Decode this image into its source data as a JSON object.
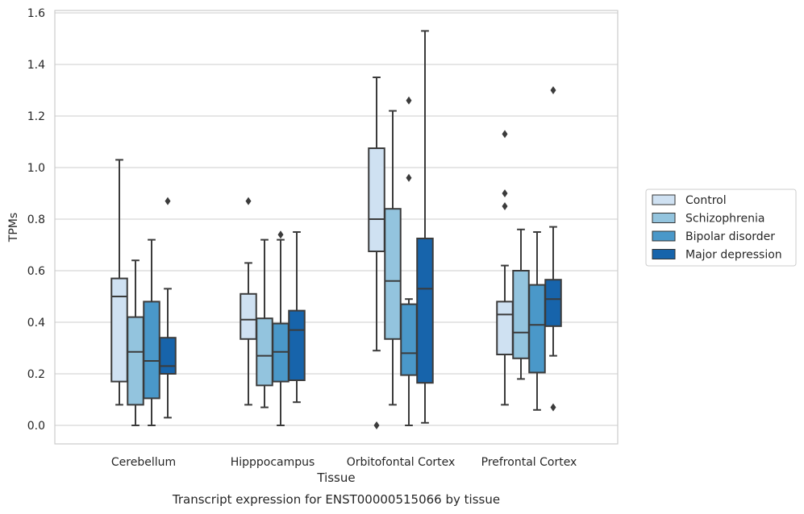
{
  "chart_data": {
    "type": "box",
    "title": "",
    "caption": "Transcript expression for ENST00000515066 by tissue",
    "xlabel": "Tissue",
    "ylabel": "TPMs",
    "ylim": [
      -0.07,
      1.61
    ],
    "yticks": [
      0.0,
      0.2,
      0.4,
      0.6,
      0.8,
      1.0,
      1.2,
      1.4,
      1.6
    ],
    "ytick_labels": [
      "0.0",
      "0.2",
      "0.4",
      "0.6",
      "0.8",
      "1.0",
      "1.2",
      "1.4",
      "1.6"
    ],
    "grid": "horizontal",
    "legend_position": "right",
    "categories": [
      "Cerebellum",
      "Hipppocampus",
      "Orbitofontal Cortex",
      "Prefrontal Cortex"
    ],
    "series": [
      {
        "name": "Control",
        "color": "#cfe1f2",
        "boxes": [
          {
            "min": 0.08,
            "q1": 0.17,
            "median": 0.5,
            "q3": 0.57,
            "max": 1.03,
            "outliers": []
          },
          {
            "min": 0.08,
            "q1": 0.335,
            "median": 0.41,
            "q3": 0.51,
            "max": 0.63,
            "outliers": [
              0.87
            ]
          },
          {
            "min": 0.29,
            "q1": 0.675,
            "median": 0.8,
            "q3": 1.075,
            "max": 1.35,
            "outliers": [
              0.0
            ]
          },
          {
            "min": 0.08,
            "q1": 0.275,
            "median": 0.43,
            "q3": 0.48,
            "max": 0.62,
            "outliers": [
              0.85,
              0.9,
              1.13
            ]
          }
        ]
      },
      {
        "name": "Schizophrenia",
        "color": "#93c4de",
        "boxes": [
          {
            "min": 0.0,
            "q1": 0.08,
            "median": 0.285,
            "q3": 0.42,
            "max": 0.64,
            "outliers": []
          },
          {
            "min": 0.07,
            "q1": 0.155,
            "median": 0.27,
            "q3": 0.415,
            "max": 0.72,
            "outliers": []
          },
          {
            "min": 0.08,
            "q1": 0.335,
            "median": 0.56,
            "q3": 0.84,
            "max": 1.22,
            "outliers": []
          },
          {
            "min": 0.18,
            "q1": 0.26,
            "median": 0.36,
            "q3": 0.6,
            "max": 0.76,
            "outliers": []
          }
        ]
      },
      {
        "name": "Bipolar disorder",
        "color": "#4a98c9",
        "boxes": [
          {
            "min": 0.0,
            "q1": 0.105,
            "median": 0.25,
            "q3": 0.48,
            "max": 0.72,
            "outliers": []
          },
          {
            "min": 0.0,
            "q1": 0.17,
            "median": 0.285,
            "q3": 0.395,
            "max": 0.72,
            "outliers": [
              0.74
            ]
          },
          {
            "min": 0.0,
            "q1": 0.195,
            "median": 0.28,
            "q3": 0.47,
            "max": 0.49,
            "outliers": [
              0.96,
              1.26
            ]
          },
          {
            "min": 0.06,
            "q1": 0.205,
            "median": 0.39,
            "q3": 0.545,
            "max": 0.75,
            "outliers": []
          }
        ]
      },
      {
        "name": "Major depression",
        "color": "#1764ab",
        "boxes": [
          {
            "min": 0.03,
            "q1": 0.2,
            "median": 0.23,
            "q3": 0.34,
            "max": 0.53,
            "outliers": [
              0.87
            ]
          },
          {
            "min": 0.09,
            "q1": 0.175,
            "median": 0.37,
            "q3": 0.445,
            "max": 0.75,
            "outliers": []
          },
          {
            "min": 0.01,
            "q1": 0.165,
            "median": 0.53,
            "q3": 0.725,
            "max": 1.53,
            "outliers": []
          },
          {
            "min": 0.27,
            "q1": 0.385,
            "median": 0.49,
            "q3": 0.565,
            "max": 0.77,
            "outliers": [
              0.07,
              1.3
            ]
          }
        ]
      }
    ]
  }
}
